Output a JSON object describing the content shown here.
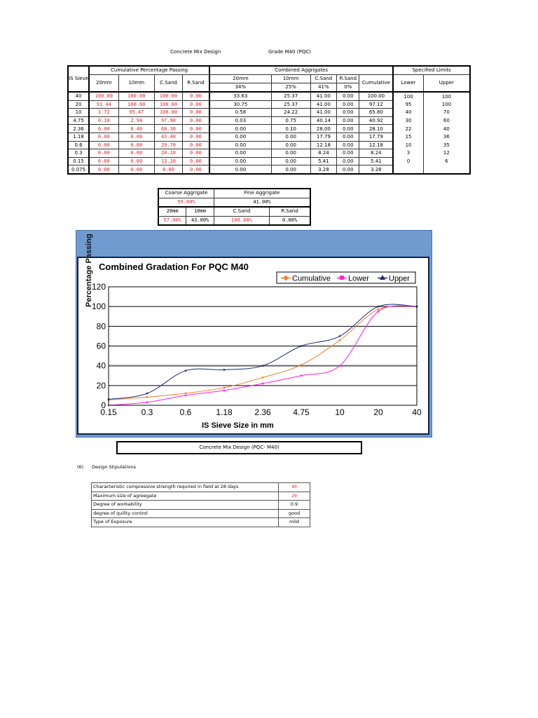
{
  "header": {
    "title": "Concrete Mix Design",
    "grade": "Grade M40 (PQC)"
  },
  "main_table": {
    "sieve_header": "IS Sieve",
    "group_cumulative": "Cumulative Percentage Passing",
    "group_combined": "Combined Aggrigates",
    "group_limits": "Specified Limits",
    "cum_cols": [
      "20mm",
      "10mm",
      "C.Sand",
      "R.Sand"
    ],
    "comb_cols": [
      "20mm",
      "10mm",
      "C.Sand",
      "R.Sand"
    ],
    "comb_pcts": [
      "34%",
      "25%",
      "41%",
      "0%"
    ],
    "cumulative_label": "Cumulative",
    "lower_label": "Lower",
    "upper_label": "Upper",
    "rows": [
      {
        "sieve": "40",
        "c20": "100.00",
        "c10": "100.00",
        "cs": "100.00",
        "rs": "0.00",
        "b20": "33.63",
        "b10": "25.37",
        "bcs": "41.00",
        "brs": "0.00",
        "cum": "100.00",
        "lo": "100",
        "up": "100"
      },
      {
        "sieve": "20",
        "c20": "91.44",
        "c10": "100.00",
        "cs": "100.00",
        "rs": "0.00",
        "b20": "30.75",
        "b10": "25.37",
        "bcs": "41.00",
        "brs": "0.00",
        "cum": "97.12",
        "lo": "95",
        "up": "100"
      },
      {
        "sieve": "10",
        "c20": "1.72",
        "c10": "95.47",
        "cs": "100.00",
        "rs": "0.00",
        "b20": "0.58",
        "b10": "24.22",
        "bcs": "41.00",
        "brs": "0.00",
        "cum": "65.80",
        "lo": "40",
        "up": "70"
      },
      {
        "sieve": "4.75",
        "c20": "0.10",
        "c10": "2.94",
        "cs": "97.90",
        "rs": "0.00",
        "b20": "0.03",
        "b10": "0.75",
        "bcs": "40.14",
        "brs": "0.00",
        "cum": "40.92",
        "lo": "30",
        "up": "60"
      },
      {
        "sieve": "2.36",
        "c20": "0.00",
        "c10": "0.40",
        "cs": "68.30",
        "rs": "0.00",
        "b20": "0.00",
        "b10": "0.10",
        "bcs": "28.00",
        "brs": "0.00",
        "cum": "28.10",
        "lo": "22",
        "up": "40"
      },
      {
        "sieve": "1.18",
        "c20": "0.00",
        "c10": "0.00",
        "cs": "43.40",
        "rs": "0.00",
        "b20": "0.00",
        "b10": "0.00",
        "bcs": "17.79",
        "brs": "0.00",
        "cum": "17.79",
        "lo": "15",
        "up": "36"
      },
      {
        "sieve": "0.6",
        "c20": "0.00",
        "c10": "0.00",
        "cs": "29.70",
        "rs": "0.00",
        "b20": "0.00",
        "b10": "0.00",
        "bcs": "12.18",
        "brs": "0.00",
        "cum": "12.18",
        "lo": "10",
        "up": "35"
      },
      {
        "sieve": "0.3",
        "c20": "0.00",
        "c10": "0.00",
        "cs": "20.10",
        "rs": "0.00",
        "b20": "0.00",
        "b10": "0.00",
        "bcs": "8.24",
        "brs": "0.00",
        "cum": "8.24",
        "lo": "3",
        "up": "12"
      },
      {
        "sieve": "0.15",
        "c20": "0.00",
        "c10": "0.00",
        "cs": "13.20",
        "rs": "0.00",
        "b20": "0.00",
        "b10": "0.00",
        "bcs": "5.41",
        "brs": "0.00",
        "cum": "5.41",
        "lo": "0",
        "up": "6"
      },
      {
        "sieve": "0.075",
        "c20": "0.00",
        "c10": "0.00",
        "cs": "8.00",
        "rs": "0.00",
        "b20": "0.00",
        "b10": "0.00",
        "bcs": "3.28",
        "brs": "0.00",
        "cum": "3.28",
        "lo": "",
        "up": ""
      }
    ]
  },
  "proportions": {
    "coarse_label": "Coarse Aggrigate",
    "fine_label": "Fine Aggrigate",
    "coarse_value": "59.00%",
    "fine_value": "41.00%",
    "cols": [
      "20mm",
      "10mm",
      "C.Sand",
      "R.Sand"
    ],
    "values": [
      "57.00%",
      "43.00%",
      "100.00%",
      "0.00%"
    ]
  },
  "chart_data": {
    "type": "line",
    "title": "Combined Gradation For PQC M40",
    "xlabel": "IS Sieve Size in mm",
    "ylabel": "Percentage Passing",
    "categories": [
      "0.15",
      "0.3",
      "0.6",
      "1.18",
      "2.36",
      "4.75",
      "10",
      "20",
      "40"
    ],
    "series": [
      {
        "name": "Cumulative",
        "color": "#f07f2a",
        "marker": "diamond",
        "values": [
          5.41,
          8.24,
          12.18,
          17.79,
          28.1,
          40.92,
          65.8,
          97.12,
          100
        ]
      },
      {
        "name": "Lower",
        "color": "#ff1fe0",
        "marker": "square",
        "values": [
          0,
          3,
          10,
          15,
          22,
          30,
          40,
          95,
          100
        ]
      },
      {
        "name": "Upper",
        "color": "#1c2a7a",
        "marker": "triangle",
        "values": [
          6,
          12,
          35,
          36,
          40,
          60,
          70,
          100,
          100
        ]
      }
    ],
    "yticks": [
      "0",
      "20",
      "40",
      "60",
      "80",
      "100",
      "120"
    ],
    "ylim": [
      0,
      120
    ],
    "grid": true,
    "legend_position": "top-right"
  },
  "mix_box": {
    "label": "Concrete Mix Design (PQC- M40)"
  },
  "stipulations": {
    "index": "(6)",
    "heading": "Design Stipulations",
    "rows": [
      {
        "label": "Characteristic compressive strength required in field at 28 days",
        "value": "40",
        "red": true
      },
      {
        "label": "Maximum size of agreegate",
        "value": "20",
        "red": true
      },
      {
        "label": "Degree of workability",
        "value": "0.9",
        "red": false
      },
      {
        "label": "degree of quility control",
        "value": "good",
        "red": false
      },
      {
        "label": "Type of Exposure",
        "value": "mild",
        "red": false
      }
    ]
  }
}
